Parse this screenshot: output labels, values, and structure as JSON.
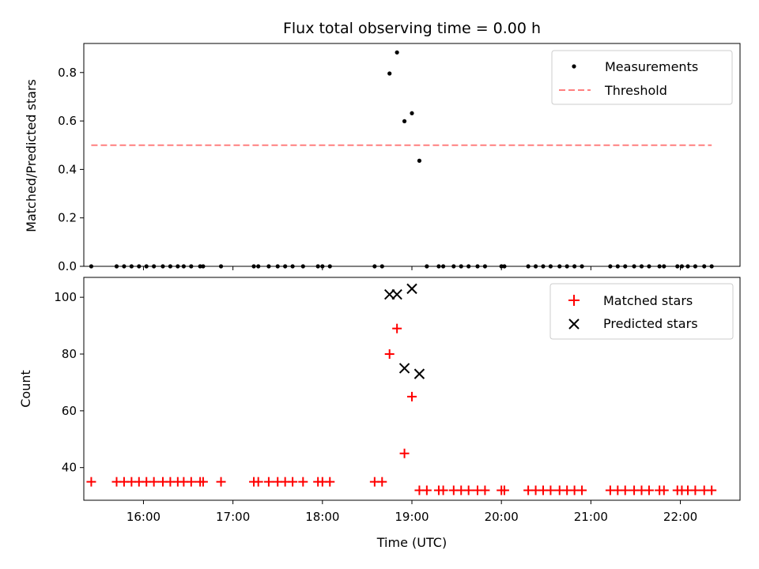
{
  "title": "Flux total observing time = 0.00 h",
  "xlabel": "Time (UTC)",
  "colors": {
    "measurement": "#000000",
    "threshold": "#ff7f7f",
    "matched": "#ff0000",
    "predicted": "#000000"
  },
  "chart_data": [
    {
      "type": "scatter",
      "ylabel": "Matched/Predicted stars",
      "xlim": [
        "15:20",
        "22:40"
      ],
      "ylim": [
        0,
        0.92
      ],
      "yticks": [
        0.0,
        0.2,
        0.4,
        0.6,
        0.8
      ],
      "ytick_labels": [
        "0.0",
        "0.2",
        "0.4",
        "0.6",
        "0.8"
      ],
      "legend": {
        "placement": "top-right",
        "entries": [
          "Measurements",
          "Threshold"
        ]
      },
      "series": [
        {
          "name": "Measurements",
          "marker": "dot",
          "points": [
            [
              "15:25",
              0.0
            ],
            [
              "15:42",
              0.0
            ],
            [
              "15:47",
              0.0
            ],
            [
              "15:52",
              0.0
            ],
            [
              "15:57",
              0.0
            ],
            [
              "16:02",
              0.0
            ],
            [
              "16:07",
              0.0
            ],
            [
              "16:13",
              0.0
            ],
            [
              "16:18",
              0.0
            ],
            [
              "16:23",
              0.0
            ],
            [
              "16:27",
              0.0
            ],
            [
              "16:32",
              0.0
            ],
            [
              "16:38",
              0.0
            ],
            [
              "16:40",
              0.0
            ],
            [
              "16:52",
              0.0
            ],
            [
              "17:14",
              0.0
            ],
            [
              "17:17",
              0.0
            ],
            [
              "17:24",
              0.0
            ],
            [
              "17:30",
              0.0
            ],
            [
              "17:35",
              0.0
            ],
            [
              "17:40",
              0.0
            ],
            [
              "17:47",
              0.0
            ],
            [
              "17:57",
              0.0
            ],
            [
              "18:00",
              0.0
            ],
            [
              "18:05",
              0.0
            ],
            [
              "18:35",
              0.0
            ],
            [
              "18:40",
              0.0
            ],
            [
              "18:45",
              0.796
            ],
            [
              "18:50",
              0.883
            ],
            [
              "18:55",
              0.599
            ],
            [
              "19:00",
              0.632
            ],
            [
              "19:05",
              0.436
            ],
            [
              "19:10",
              0.0
            ],
            [
              "19:18",
              0.0
            ],
            [
              "19:21",
              0.0
            ],
            [
              "19:28",
              0.0
            ],
            [
              "19:33",
              0.0
            ],
            [
              "19:38",
              0.0
            ],
            [
              "19:44",
              0.0
            ],
            [
              "19:49",
              0.0
            ],
            [
              "20:00",
              0.0
            ],
            [
              "20:02",
              0.0
            ],
            [
              "20:18",
              0.0
            ],
            [
              "20:23",
              0.0
            ],
            [
              "20:28",
              0.0
            ],
            [
              "20:33",
              0.0
            ],
            [
              "20:39",
              0.0
            ],
            [
              "20:44",
              0.0
            ],
            [
              "20:49",
              0.0
            ],
            [
              "20:54",
              0.0
            ],
            [
              "21:13",
              0.0
            ],
            [
              "21:18",
              0.0
            ],
            [
              "21:23",
              0.0
            ],
            [
              "21:29",
              0.0
            ],
            [
              "21:34",
              0.0
            ],
            [
              "21:39",
              0.0
            ],
            [
              "21:46",
              0.0
            ],
            [
              "21:49",
              0.0
            ],
            [
              "21:58",
              0.0
            ],
            [
              "22:01",
              0.0
            ],
            [
              "22:05",
              0.0
            ],
            [
              "22:10",
              0.0
            ],
            [
              "22:16",
              0.0
            ],
            [
              "22:21",
              0.0
            ]
          ]
        },
        {
          "name": "Threshold",
          "line": "dashed",
          "points": [
            [
              "15:25",
              0.5
            ],
            [
              "22:21",
              0.5
            ]
          ]
        }
      ]
    },
    {
      "type": "scatter",
      "ylabel": "Count",
      "xlabel": "Time (UTC)",
      "xlim": [
        "15:20",
        "22:40"
      ],
      "ylim": [
        28.5,
        107
      ],
      "yticks": [
        40,
        60,
        80,
        100
      ],
      "ytick_labels": [
        "40",
        "60",
        "80",
        "100"
      ],
      "xticks": [
        "16:00",
        "17:00",
        "18:00",
        "19:00",
        "20:00",
        "21:00",
        "22:00"
      ],
      "xtick_labels": [
        "16:00",
        "17:00",
        "18:00",
        "19:00",
        "20:00",
        "21:00",
        "22:00"
      ],
      "legend": {
        "placement": "top-right",
        "entries": [
          "Matched stars",
          "Predicted stars"
        ]
      },
      "series": [
        {
          "name": "Matched stars",
          "marker": "plus",
          "points": [
            [
              "15:25",
              35
            ],
            [
              "15:42",
              35
            ],
            [
              "15:47",
              35
            ],
            [
              "15:52",
              35
            ],
            [
              "15:57",
              35
            ],
            [
              "16:02",
              35
            ],
            [
              "16:07",
              35
            ],
            [
              "16:13",
              35
            ],
            [
              "16:18",
              35
            ],
            [
              "16:23",
              35
            ],
            [
              "16:27",
              35
            ],
            [
              "16:32",
              35
            ],
            [
              "16:38",
              35
            ],
            [
              "16:40",
              35
            ],
            [
              "16:52",
              35
            ],
            [
              "17:14",
              35
            ],
            [
              "17:17",
              35
            ],
            [
              "17:24",
              35
            ],
            [
              "17:30",
              35
            ],
            [
              "17:35",
              35
            ],
            [
              "17:40",
              35
            ],
            [
              "17:47",
              35
            ],
            [
              "17:57",
              35
            ],
            [
              "18:00",
              35
            ],
            [
              "18:05",
              35
            ],
            [
              "18:35",
              35
            ],
            [
              "18:40",
              35
            ],
            [
              "18:45",
              80
            ],
            [
              "18:50",
              89
            ],
            [
              "18:55",
              45
            ],
            [
              "19:00",
              65
            ],
            [
              "19:05",
              32
            ],
            [
              "19:10",
              32
            ],
            [
              "19:18",
              32
            ],
            [
              "19:21",
              32
            ],
            [
              "19:28",
              32
            ],
            [
              "19:33",
              32
            ],
            [
              "19:38",
              32
            ],
            [
              "19:44",
              32
            ],
            [
              "19:49",
              32
            ],
            [
              "20:00",
              32
            ],
            [
              "20:02",
              32
            ],
            [
              "20:18",
              32
            ],
            [
              "20:23",
              32
            ],
            [
              "20:28",
              32
            ],
            [
              "20:33",
              32
            ],
            [
              "20:39",
              32
            ],
            [
              "20:44",
              32
            ],
            [
              "20:49",
              32
            ],
            [
              "20:54",
              32
            ],
            [
              "21:13",
              32
            ],
            [
              "21:18",
              32
            ],
            [
              "21:23",
              32
            ],
            [
              "21:29",
              32
            ],
            [
              "21:34",
              32
            ],
            [
              "21:39",
              32
            ],
            [
              "21:46",
              32
            ],
            [
              "21:49",
              32
            ],
            [
              "21:58",
              32
            ],
            [
              "22:01",
              32
            ],
            [
              "22:05",
              32
            ],
            [
              "22:10",
              32
            ],
            [
              "22:16",
              32
            ],
            [
              "22:21",
              32
            ]
          ]
        },
        {
          "name": "Predicted stars",
          "marker": "x",
          "points": [
            [
              "18:45",
              101
            ],
            [
              "18:50",
              101
            ],
            [
              "18:55",
              75
            ],
            [
              "19:00",
              103
            ],
            [
              "19:05",
              73
            ]
          ]
        }
      ]
    }
  ]
}
